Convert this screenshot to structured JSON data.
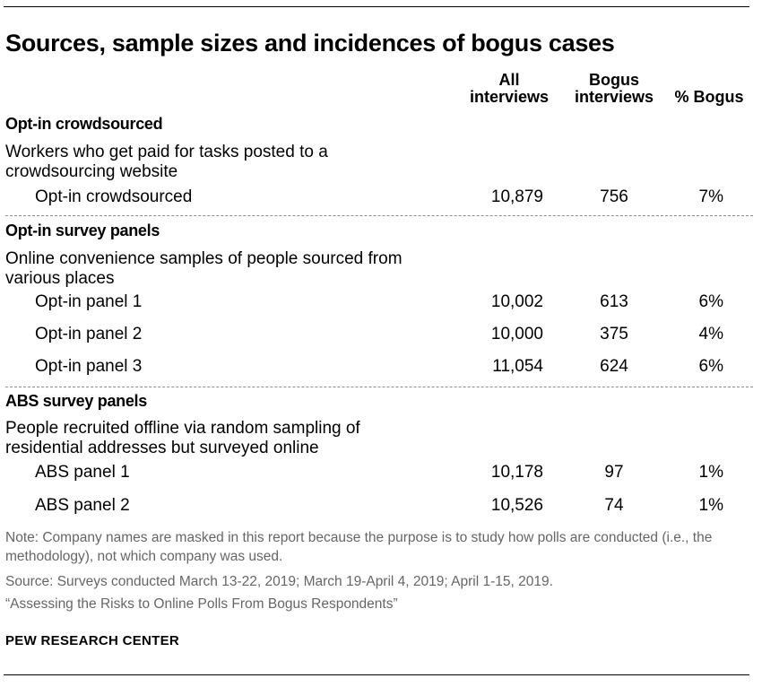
{
  "title": "Sources, sample sizes and incidences of bogus cases",
  "columns": {
    "all_line1": "All",
    "all_line2": "interviews",
    "bogus_line1": "Bogus",
    "bogus_line2": "interviews",
    "pct": "% Bogus"
  },
  "groups": [
    {
      "title": "Opt-in crowdsourced",
      "description": "Workers who get paid for tasks posted to a crowdsourcing website",
      "rows": [
        {
          "label": "Opt-in crowdsourced",
          "all": "10,879",
          "bogus": "756",
          "pct": "7%"
        }
      ]
    },
    {
      "title": "Opt-in survey panels",
      "description": "Online convenience samples of people sourced from various places",
      "rows": [
        {
          "label": "Opt-in panel 1",
          "all": "10,002",
          "bogus": "613",
          "pct": "6%"
        },
        {
          "label": "Opt-in panel 2",
          "all": "10,000",
          "bogus": "375",
          "pct": "4%"
        },
        {
          "label": "Opt-in panel 3",
          "all": "11,054",
          "bogus": "624",
          "pct": "6%"
        }
      ]
    },
    {
      "title": "ABS survey panels",
      "description": "People recruited offline via random sampling of residential addresses but surveyed online",
      "rows": [
        {
          "label": "ABS panel 1",
          "all": "10,178",
          "bogus": "97",
          "pct": "1%"
        },
        {
          "label": "ABS panel 2",
          "all": "10,526",
          "bogus": "74",
          "pct": "1%"
        }
      ]
    }
  ],
  "note": "Note: Company names are masked in this report because the purpose is to study how polls are conducted (i.e., the methodology), not which company was used.",
  "source": "Source: Surveys conducted March 13-22, 2019; March 19-April 4, 2019; April 1-15, 2019.",
  "report": "“Assessing the Risks to Online Polls From Bogus Respondents”",
  "brand": "PEW RESEARCH CENTER"
}
